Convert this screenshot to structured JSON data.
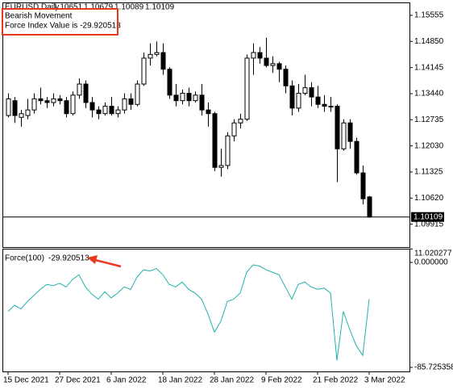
{
  "chart_data": [
    {
      "type": "candlestick",
      "symbol": "EURUSD,Daily",
      "comments": [
        "Bearish Movement",
        "Force Index Value is -29.920513"
      ],
      "up_color": "#ffffff",
      "down_color": "#000000",
      "open": [
        1.1285,
        1.1325,
        1.128,
        1.1285,
        1.13,
        1.133,
        1.1325,
        1.132,
        1.133,
        1.1325,
        1.129,
        1.134,
        1.137,
        1.132,
        1.13,
        1.129,
        1.131,
        1.129,
        1.13,
        1.133,
        1.1315,
        1.137,
        1.144,
        1.145,
        1.1455,
        1.141,
        1.134,
        1.1325,
        1.1345,
        1.1325,
        1.134,
        1.13,
        1.129,
        1.1145,
        1.115,
        1.123,
        1.1265,
        1.1275,
        1.144,
        1.1455,
        1.144,
        1.142,
        1.1425,
        1.141,
        1.1365,
        1.1305,
        1.1345,
        1.136,
        1.1335,
        1.1315,
        1.131,
        1.131,
        1.1195,
        1.1265,
        1.1215,
        1.113,
        1.10651
      ],
      "high": [
        1.1345,
        1.1335,
        1.13,
        1.133,
        1.1345,
        1.136,
        1.1335,
        1.1345,
        1.134,
        1.1335,
        1.135,
        1.1385,
        1.138,
        1.1335,
        1.131,
        1.132,
        1.1335,
        1.131,
        1.1345,
        1.1345,
        1.138,
        1.1455,
        1.148,
        1.1485,
        1.148,
        1.1415,
        1.137,
        1.1355,
        1.136,
        1.135,
        1.137,
        1.132,
        1.1295,
        1.1195,
        1.124,
        1.1275,
        1.129,
        1.145,
        1.148,
        1.147,
        1.1495,
        1.1445,
        1.143,
        1.142,
        1.138,
        1.137,
        1.1395,
        1.1375,
        1.1365,
        1.134,
        1.1335,
        1.1315,
        1.1275,
        1.1275,
        1.1225,
        1.115,
        1.10679
      ],
      "low": [
        1.128,
        1.1265,
        1.1255,
        1.1275,
        1.129,
        1.1315,
        1.1305,
        1.131,
        1.1315,
        1.128,
        1.1285,
        1.133,
        1.1305,
        1.128,
        1.1275,
        1.1285,
        1.1285,
        1.128,
        1.129,
        1.13,
        1.131,
        1.1365,
        1.142,
        1.1445,
        1.1395,
        1.133,
        1.131,
        1.1315,
        1.131,
        1.132,
        1.1285,
        1.1255,
        1.1135,
        1.112,
        1.114,
        1.1215,
        1.125,
        1.127,
        1.1395,
        1.1425,
        1.1415,
        1.14,
        1.1375,
        1.1345,
        1.1285,
        1.1295,
        1.134,
        1.131,
        1.1305,
        1.1295,
        1.1295,
        1.1105,
        1.119,
        1.1195,
        1.1125,
        1.1045,
        1.10089
      ],
      "close": [
        1.133,
        1.1285,
        1.129,
        1.13,
        1.133,
        1.1325,
        1.132,
        1.133,
        1.1325,
        1.129,
        1.134,
        1.137,
        1.132,
        1.13,
        1.129,
        1.131,
        1.129,
        1.13,
        1.133,
        1.1315,
        1.137,
        1.144,
        1.145,
        1.1455,
        1.141,
        1.134,
        1.1325,
        1.1345,
        1.1325,
        1.134,
        1.13,
        1.129,
        1.1145,
        1.115,
        1.123,
        1.1265,
        1.1275,
        1.144,
        1.1455,
        1.144,
        1.142,
        1.1425,
        1.141,
        1.1365,
        1.1305,
        1.1345,
        1.136,
        1.1335,
        1.1315,
        1.131,
        1.131,
        1.1195,
        1.1265,
        1.1215,
        1.113,
        1.106,
        1.10109
      ],
      "ylim": [
        1.09296,
        1.15904
      ],
      "yticks": [
        1.15555,
        {
          "value": 1.1485,
          "label": "1.14850"
        },
        1.14145,
        {
          "value": 1.1344,
          "label": "1.13440"
        },
        1.12735,
        {
          "value": 1.1203,
          "label": "1.12030"
        },
        1.11325,
        {
          "value": 1.1062,
          "label": "1.10620"
        },
        1.09915
      ]
    },
    {
      "type": "line",
      "name": "Force(100)",
      "color": "#20b2aa",
      "categories": [
        "15 Dec 2021",
        null,
        null,
        null,
        null,
        null,
        null,
        null,
        "27 Dec 2021",
        null,
        null,
        null,
        null,
        null,
        null,
        null,
        "6 Jan 2022",
        null,
        null,
        null,
        null,
        null,
        null,
        null,
        "18 Jan 2022",
        null,
        null,
        null,
        null,
        null,
        null,
        null,
        "28 Jan 2022",
        null,
        null,
        null,
        null,
        null,
        null,
        null,
        "9 Feb 2022",
        null,
        null,
        null,
        null,
        null,
        null,
        null,
        "21 Feb 2022",
        null,
        null,
        null,
        null,
        null,
        null,
        null,
        "3 Mar 2022"
      ],
      "values": [
        -40,
        -35,
        -38,
        -32,
        -27,
        -22,
        -18,
        -19,
        -17,
        -20,
        -14,
        -10,
        -20,
        -26,
        -30,
        -24,
        -29,
        -25,
        -20,
        -22,
        -12,
        -6,
        -7,
        -5,
        -10,
        -18,
        -20,
        -16,
        -22,
        -25,
        -30,
        -42,
        -57,
        -48,
        -32,
        -30,
        -25,
        -8,
        -2,
        -3,
        -6,
        -8,
        -10,
        -20,
        -30,
        -18,
        -16,
        -20,
        -22,
        -21,
        -25,
        -80,
        -40,
        -55,
        -68,
        -76,
        -29.920513
      ],
      "ylim": [
        -89.05,
        11.2
      ],
      "yticks": [
        11.020277,
        {
          "value": 0,
          "label": "0.000000"
        },
        -85.725358
      ]
    }
  ]
}
